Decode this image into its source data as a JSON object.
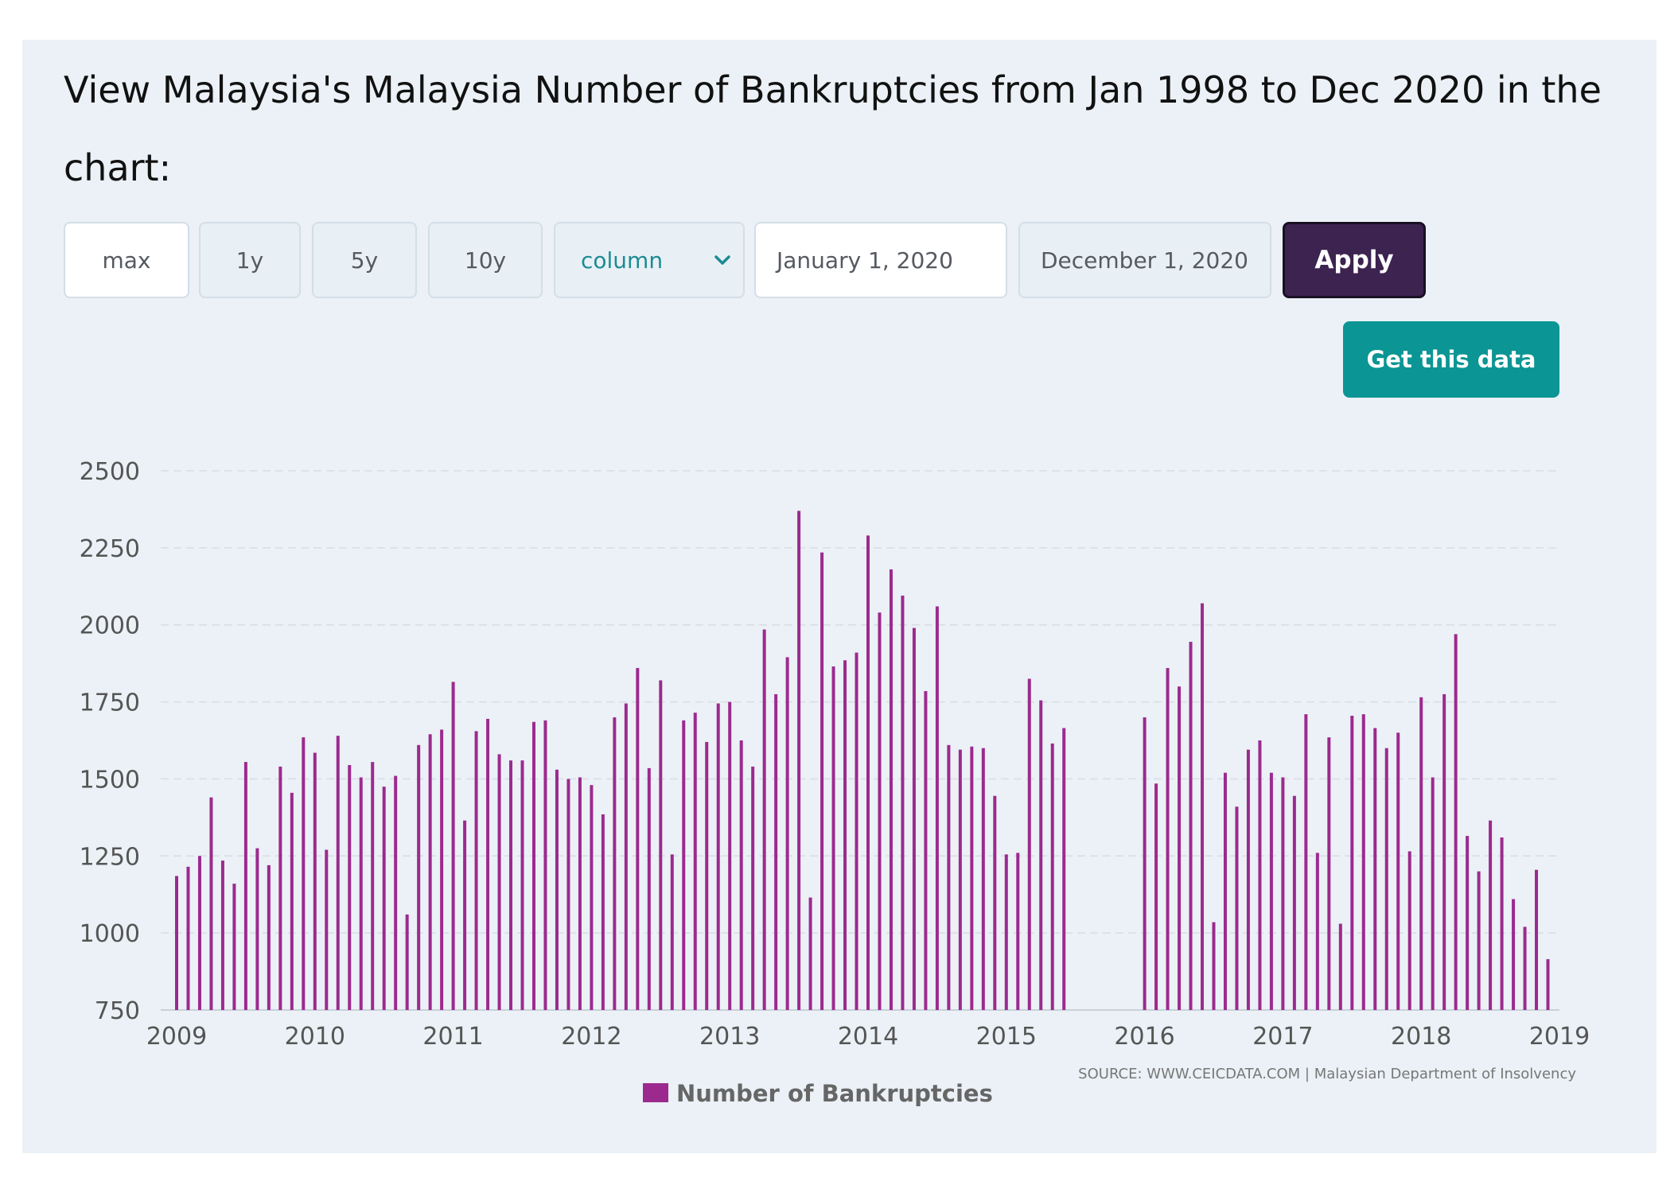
{
  "page": {
    "heading": "View Malaysia's Malaysia Number of Bankruptcies from Jan 1998 to Dec 2020 in the chart:"
  },
  "controls": {
    "range_buttons": [
      {
        "label": "max"
      },
      {
        "label": "1y"
      },
      {
        "label": "5y"
      },
      {
        "label": "10y"
      }
    ],
    "chart_type": "column",
    "start_date": "January 1, 2020",
    "end_date": "December 1, 2020",
    "apply_label": "Apply",
    "get_data_label": "Get this data"
  },
  "colors": {
    "series": "#9c2a8e",
    "grid": "#d7dde3",
    "panel": "#ebf1f6",
    "apply": "#3c2350",
    "get_data": "#0b9594"
  },
  "source_text": "SOURCE: WWW.CEICDATA.COM | Malaysian Department of Insolvency",
  "chart_data": {
    "type": "bar",
    "title": "",
    "xlabel": "",
    "ylabel": "",
    "ylim": [
      750,
      2500
    ],
    "y_ticks": [
      750,
      1000,
      1250,
      1500,
      1750,
      2000,
      2250,
      2500
    ],
    "x_range": [
      "2009-01",
      "2019-01"
    ],
    "x_tick_labels": [
      "2009",
      "2010",
      "2011",
      "2012",
      "2013",
      "2014",
      "2015",
      "2016",
      "2017",
      "2018",
      "2019"
    ],
    "grid": true,
    "legend_position": "bottom",
    "series": [
      {
        "name": "Number of Bankruptcies",
        "points": [
          [
            "2009-01",
            1185
          ],
          [
            "2009-02",
            1215
          ],
          [
            "2009-03",
            1250
          ],
          [
            "2009-04",
            1440
          ],
          [
            "2009-05",
            1235
          ],
          [
            "2009-06",
            1160
          ],
          [
            "2009-07",
            1555
          ],
          [
            "2009-08",
            1275
          ],
          [
            "2009-09",
            1220
          ],
          [
            "2009-10",
            1540
          ],
          [
            "2009-11",
            1455
          ],
          [
            "2009-12",
            1635
          ],
          [
            "2010-01",
            1585
          ],
          [
            "2010-02",
            1270
          ],
          [
            "2010-03",
            1640
          ],
          [
            "2010-04",
            1545
          ],
          [
            "2010-05",
            1505
          ],
          [
            "2010-06",
            1555
          ],
          [
            "2010-07",
            1475
          ],
          [
            "2010-08",
            1510
          ],
          [
            "2010-09",
            1060
          ],
          [
            "2010-10",
            1610
          ],
          [
            "2010-11",
            1645
          ],
          [
            "2010-12",
            1660
          ],
          [
            "2011-01",
            1815
          ],
          [
            "2011-02",
            1365
          ],
          [
            "2011-03",
            1655
          ],
          [
            "2011-04",
            1695
          ],
          [
            "2011-05",
            1580
          ],
          [
            "2011-06",
            1560
          ],
          [
            "2011-07",
            1560
          ],
          [
            "2011-08",
            1685
          ],
          [
            "2011-09",
            1690
          ],
          [
            "2011-10",
            1530
          ],
          [
            "2011-11",
            1500
          ],
          [
            "2011-12",
            1505
          ],
          [
            "2012-01",
            1480
          ],
          [
            "2012-02",
            1385
          ],
          [
            "2012-03",
            1700
          ],
          [
            "2012-04",
            1745
          ],
          [
            "2012-05",
            1860
          ],
          [
            "2012-06",
            1535
          ],
          [
            "2012-07",
            1820
          ],
          [
            "2012-08",
            1255
          ],
          [
            "2012-09",
            1690
          ],
          [
            "2012-10",
            1715
          ],
          [
            "2012-11",
            1620
          ],
          [
            "2012-12",
            1745
          ],
          [
            "2013-01",
            1750
          ],
          [
            "2013-02",
            1625
          ],
          [
            "2013-03",
            1540
          ],
          [
            "2013-04",
            1985
          ],
          [
            "2013-05",
            1775
          ],
          [
            "2013-06",
            1895
          ],
          [
            "2013-07",
            2370
          ],
          [
            "2013-08",
            1115
          ],
          [
            "2013-09",
            2235
          ],
          [
            "2013-10",
            1865
          ],
          [
            "2013-11",
            1885
          ],
          [
            "2013-12",
            1910
          ],
          [
            "2014-01",
            2290
          ],
          [
            "2014-02",
            2040
          ],
          [
            "2014-03",
            2180
          ],
          [
            "2014-04",
            2095
          ],
          [
            "2014-05",
            1990
          ],
          [
            "2014-06",
            1785
          ],
          [
            "2014-07",
            2060
          ],
          [
            "2014-08",
            1610
          ],
          [
            "2014-09",
            1595
          ],
          [
            "2014-10",
            1605
          ],
          [
            "2014-11",
            1600
          ],
          [
            "2014-12",
            1445
          ],
          [
            "2015-01",
            1255
          ],
          [
            "2015-02",
            1260
          ],
          [
            "2015-03",
            1825
          ],
          [
            "2015-04",
            1755
          ],
          [
            "2015-05",
            1615
          ],
          [
            "2015-06",
            1665
          ],
          [
            "2016-01",
            1700
          ],
          [
            "2016-02",
            1485
          ],
          [
            "2016-03",
            1860
          ],
          [
            "2016-04",
            1800
          ],
          [
            "2016-05",
            1945
          ],
          [
            "2016-06",
            2070
          ],
          [
            "2016-07",
            1035
          ],
          [
            "2016-08",
            1520
          ],
          [
            "2016-09",
            1410
          ],
          [
            "2016-10",
            1595
          ],
          [
            "2016-11",
            1625
          ],
          [
            "2016-12",
            1520
          ],
          [
            "2017-01",
            1505
          ],
          [
            "2017-02",
            1445
          ],
          [
            "2017-03",
            1710
          ],
          [
            "2017-04",
            1260
          ],
          [
            "2017-05",
            1635
          ],
          [
            "2017-06",
            1030
          ],
          [
            "2017-07",
            1705
          ],
          [
            "2017-08",
            1710
          ],
          [
            "2017-09",
            1665
          ],
          [
            "2017-10",
            1600
          ],
          [
            "2017-11",
            1650
          ],
          [
            "2017-12",
            1265
          ],
          [
            "2018-01",
            1765
          ],
          [
            "2018-02",
            1505
          ],
          [
            "2018-03",
            1775
          ],
          [
            "2018-04",
            1970
          ],
          [
            "2018-05",
            1315
          ],
          [
            "2018-06",
            1200
          ],
          [
            "2018-07",
            1365
          ],
          [
            "2018-08",
            1310
          ],
          [
            "2018-09",
            1110
          ],
          [
            "2018-10",
            1020
          ],
          [
            "2018-11",
            1205
          ],
          [
            "2018-12",
            915
          ]
        ]
      }
    ]
  }
}
